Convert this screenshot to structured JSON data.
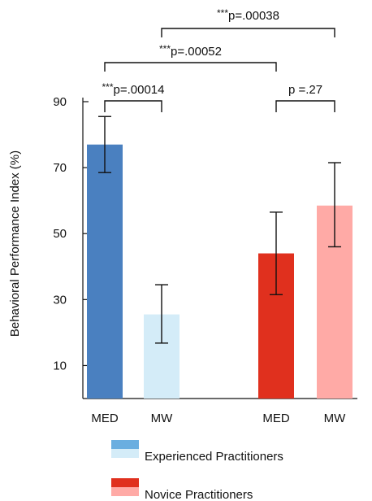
{
  "chart_data": {
    "type": "bar",
    "title": "",
    "xlabel": "",
    "ylabel": "Behavioral Performance Index (%)",
    "ylim": [
      0,
      90
    ],
    "yticks": [
      10,
      30,
      50,
      70,
      90
    ],
    "grid": false,
    "legend_position": "bottom-center",
    "bars": [
      {
        "group": "Experienced Practitioners",
        "category": "MED",
        "value": 77,
        "err_low": 68.5,
        "err_high": 85.5,
        "color": "#4a80c0"
      },
      {
        "group": "Experienced Practitioners",
        "category": "MW",
        "value": 25.5,
        "err_low": 16.8,
        "err_high": 34.5,
        "color": "#d4ecf8"
      },
      {
        "group": "Novice Practitioners",
        "category": "MED",
        "value": 44,
        "err_low": 31.5,
        "err_high": 56.5,
        "color": "#e0301e"
      },
      {
        "group": "Novice Practitioners",
        "category": "MW",
        "value": 58.5,
        "err_low": 46,
        "err_high": 71.5,
        "color": "#ffaaa6"
      }
    ],
    "significance": [
      {
        "label": "***p=.00014",
        "from_bar": 0,
        "to_bar": 1
      },
      {
        "label": "p =.27",
        "from_bar": 2,
        "to_bar": 3
      },
      {
        "label": "***p=.00052",
        "from_bar": 0,
        "to_bar": 2
      },
      {
        "label": "***p=.00038",
        "from_bar": 1,
        "to_bar": 3
      }
    ],
    "legend": [
      {
        "label": "Experienced Practitioners",
        "colors": [
          "#6aaee0",
          "#d4ecf8"
        ]
      },
      {
        "label": "Novice Practitioners",
        "colors": [
          "#e0301e",
          "#ffaaa6"
        ]
      }
    ]
  }
}
